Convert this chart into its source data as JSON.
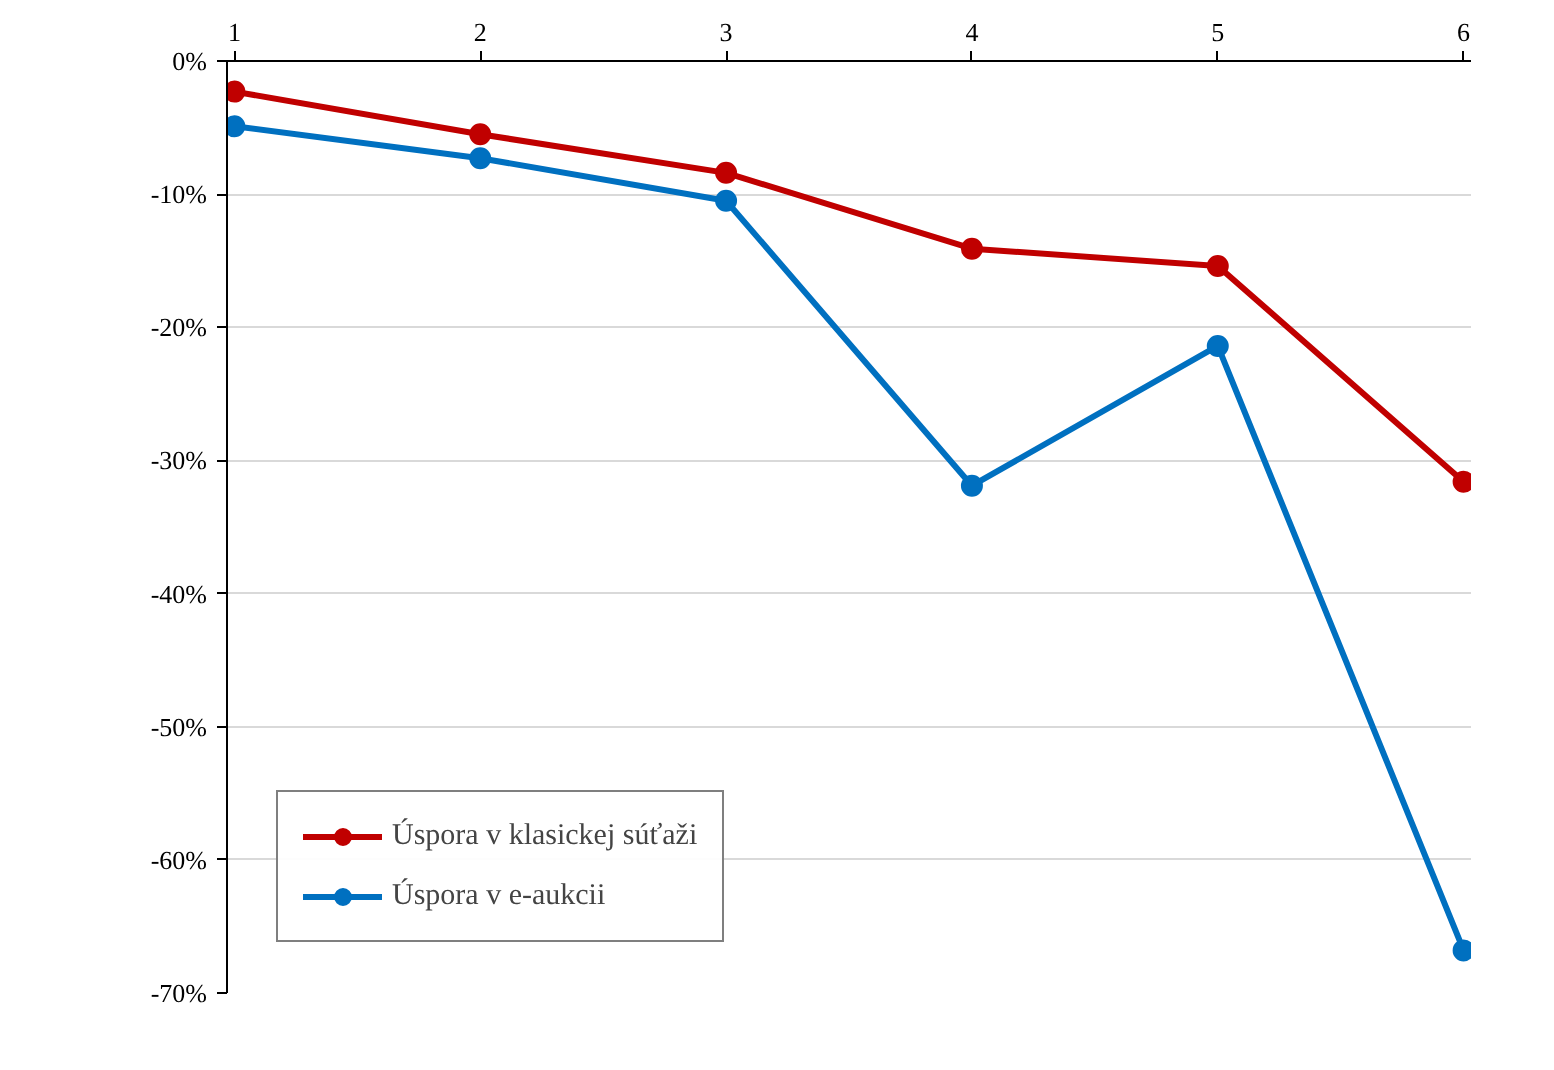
{
  "chart_data": {
    "type": "line",
    "categories": [
      "1",
      "2",
      "3",
      "4",
      "5",
      "6"
    ],
    "series": [
      {
        "name": "Úspora v klasickej súťaži",
        "color": "#c00000",
        "values": [
          -2.3,
          -5.5,
          -8.4,
          -14.1,
          -15.4,
          -31.6
        ]
      },
      {
        "name": "Úspora v e-aukcii",
        "color": "#0070c0",
        "values": [
          -4.9,
          -7.3,
          -10.5,
          -31.9,
          -21.4,
          -66.8
        ]
      }
    ],
    "ylim": [
      -70,
      0
    ],
    "yticks": [
      {
        "value": 0,
        "label": "0%"
      },
      {
        "value": -10,
        "label": "-10%"
      },
      {
        "value": -20,
        "label": "-20%"
      },
      {
        "value": -30,
        "label": "-30%"
      },
      {
        "value": -40,
        "label": "-40%"
      },
      {
        "value": -50,
        "label": "-50%"
      },
      {
        "value": -60,
        "label": "-60%"
      },
      {
        "value": -70,
        "label": "-70%"
      }
    ],
    "grid": "y",
    "legend": "bottom left",
    "marker": "circle",
    "line_style": "solid"
  }
}
